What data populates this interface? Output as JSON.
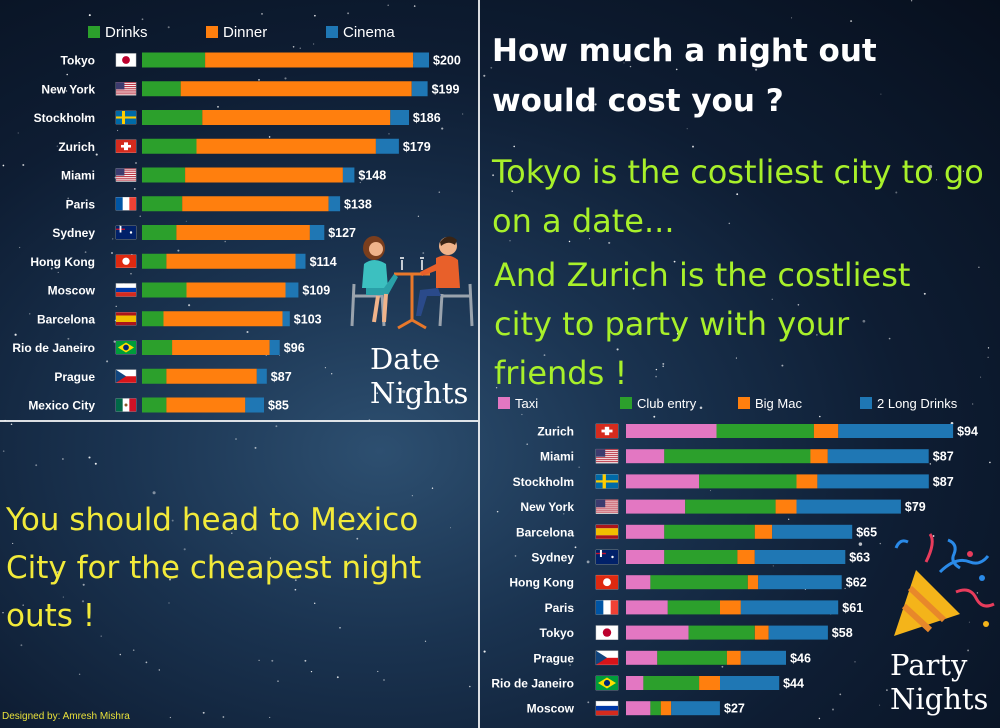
{
  "headline": "How much a night out would cost you ?",
  "fact_tokyo": "Tokyo is the costliest city to go on a date...",
  "fact_zurich": "And Zurich is the costliest city to party with your friends !",
  "cheapest_note": "You should head to Mexico City for the cheapest night outs !",
  "date_label": "Date Nights",
  "party_label": "Party Nights",
  "credit": "Designed by: Amresh Mishra",
  "colors": {
    "drinks": "#2ca02c",
    "dinner": "#ff7f0e",
    "cinema": "#1f77b4",
    "taxi": "#e377c2",
    "club_entry": "#2ca02c",
    "big_mac": "#ff7f0e",
    "long_drinks": "#1f77b4",
    "headline": "#ffffff",
    "lime": "#a8f02a",
    "yellow": "#f2ea3a"
  },
  "chart_data": [
    {
      "type": "bar",
      "orientation": "horizontal",
      "stacked": true,
      "legend_position": "top",
      "categories": [
        "Tokyo",
        "New York",
        "Stockholm",
        "Zurich",
        "Miami",
        "Paris",
        "Sydney",
        "Hong Kong",
        "Moscow",
        "Barcelona",
        "Rio de Janeiro",
        "Prague",
        "Mexico City"
      ],
      "flags": [
        "jp",
        "us",
        "se",
        "ch",
        "us",
        "fr",
        "au",
        "hk",
        "ru",
        "es",
        "br",
        "cz",
        "mx"
      ],
      "series": [
        {
          "name": "Drinks",
          "color": "#2ca02c",
          "values": [
            44,
            27,
            42,
            38,
            30,
            28,
            24,
            17,
            31,
            15,
            21,
            17,
            17
          ]
        },
        {
          "name": "Dinner",
          "color": "#ff7f0e",
          "values": [
            145,
            161,
            131,
            125,
            110,
            102,
            93,
            90,
            69,
            83,
            68,
            63,
            55
          ]
        },
        {
          "name": "Cinema",
          "color": "#1f77b4",
          "values": [
            11,
            11,
            13,
            16,
            8,
            8,
            10,
            7,
            9,
            5,
            7,
            7,
            13
          ]
        }
      ],
      "totals": [
        200,
        199,
        186,
        179,
        148,
        138,
        127,
        114,
        109,
        103,
        96,
        87,
        85
      ],
      "total_labels": [
        "$200",
        "$199",
        "$186",
        "$179",
        "$148",
        "$138",
        "$127",
        "$114",
        "$109",
        "$103",
        "$96",
        "$87",
        "$85"
      ]
    },
    {
      "type": "bar",
      "orientation": "horizontal",
      "stacked": true,
      "legend_position": "top",
      "categories": [
        "Zurich",
        "Miami",
        "Stockholm",
        "New York",
        "Barcelona",
        "Sydney",
        "Hong Kong",
        "Paris",
        "Tokyo",
        "Prague",
        "Rio de Janeiro",
        "Moscow"
      ],
      "flags": [
        "ch",
        "us",
        "se",
        "us",
        "es",
        "au",
        "hk",
        "fr",
        "jp",
        "cz",
        "br",
        "ru"
      ],
      "series": [
        {
          "name": "Taxi",
          "color": "#e377c2",
          "values": [
            26,
            11,
            21,
            17,
            11,
            11,
            7,
            12,
            18,
            9,
            5,
            7
          ]
        },
        {
          "name": "Club entry",
          "color": "#2ca02c",
          "values": [
            28,
            42,
            28,
            26,
            26,
            21,
            28,
            15,
            19,
            20,
            16,
            3
          ]
        },
        {
          "name": "Big Mac",
          "color": "#ff7f0e",
          "values": [
            7,
            5,
            6,
            6,
            5,
            5,
            3,
            6,
            4,
            4,
            6,
            3
          ]
        },
        {
          "name": "2 Long Drinks",
          "color": "#1f77b4",
          "values": [
            33,
            29,
            32,
            30,
            23,
            26,
            24,
            28,
            17,
            13,
            17,
            14
          ]
        }
      ],
      "totals": [
        94,
        87,
        87,
        79,
        65,
        63,
        62,
        61,
        58,
        46,
        44,
        27
      ],
      "total_labels": [
        "$94",
        "$87",
        "$87",
        "$79",
        "$65",
        "$63",
        "$62",
        "$61",
        "$58",
        "$46",
        "$44",
        "$27"
      ]
    }
  ]
}
